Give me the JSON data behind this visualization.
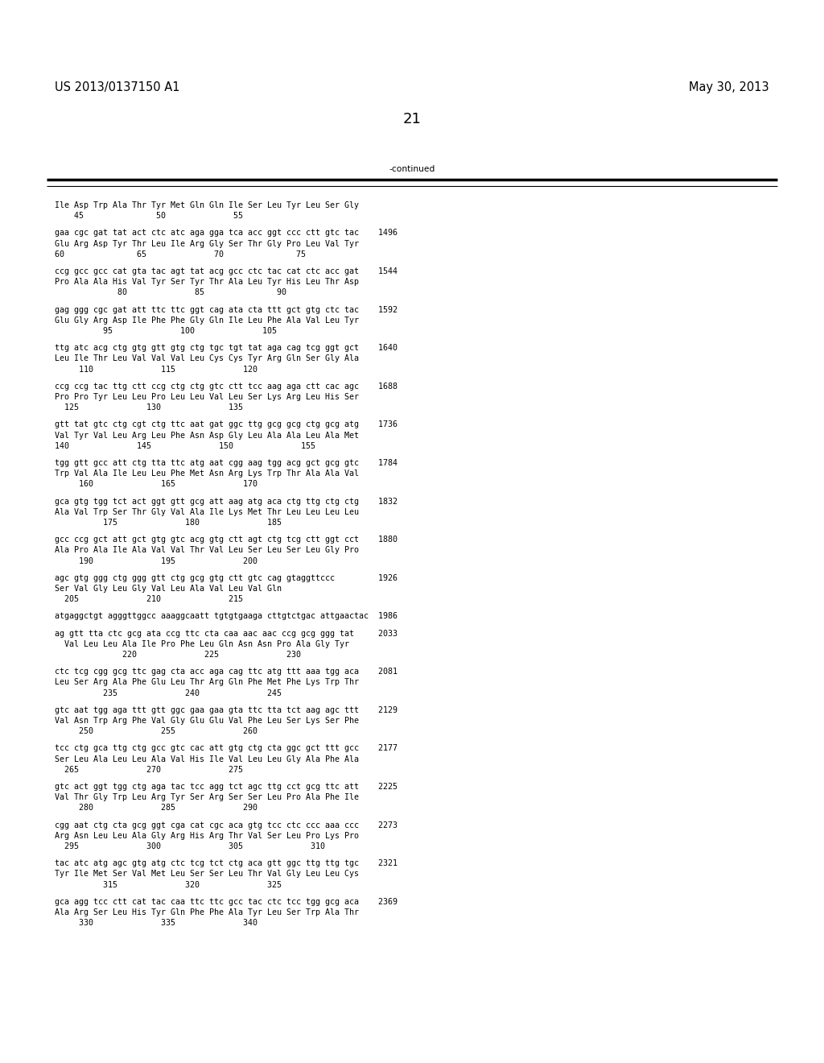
{
  "header_left": "US 2013/0137150 A1",
  "header_right": "May 30, 2013",
  "page_number": "21",
  "continued_label": "-continued",
  "background_color": "#ffffff",
  "text_color": "#000000",
  "font_size": 7.2,
  "header_font_size": 10.5,
  "page_num_font_size": 13,
  "lines": [
    "Ile Asp Trp Ala Thr Tyr Met Gln Gln Ile Ser Leu Tyr Leu Ser Gly",
    "    45               50              55",
    "",
    "gaa cgc gat tat act ctc atc aga gga tca acc ggt ccc ctt gtc tac    1496",
    "Glu Arg Asp Tyr Thr Leu Ile Arg Gly Ser Thr Gly Pro Leu Val Tyr",
    "60               65              70               75",
    "",
    "ccg gcc gcc cat gta tac agt tat acg gcc ctc tac cat ctc acc gat    1544",
    "Pro Ala Ala His Val Tyr Ser Tyr Thr Ala Leu Tyr His Leu Thr Asp",
    "             80              85               90",
    "",
    "gag ggg cgc gat att ttc ttc ggt cag ata cta ttt gct gtg ctc tac    1592",
    "Glu Gly Arg Asp Ile Phe Phe Gly Gln Ile Leu Phe Ala Val Leu Tyr",
    "          95              100              105",
    "",
    "ttg atc acg ctg gtg gtt gtg ctg tgc tgt tat aga cag tcg ggt gct    1640",
    "Leu Ile Thr Leu Val Val Val Leu Cys Cys Tyr Arg Gln Ser Gly Ala",
    "     110              115              120",
    "",
    "ccg ccg tac ttg ctt ccg ctg ctg gtc ctt tcc aag aga ctt cac agc    1688",
    "Pro Pro Tyr Leu Leu Pro Leu Leu Val Leu Ser Lys Arg Leu His Ser",
    "  125              130              135",
    "",
    "gtt tat gtc ctg cgt ctg ttc aat gat ggc ttg gcg gcg ctg gcg atg    1736",
    "Val Tyr Val Leu Arg Leu Phe Asn Asp Gly Leu Ala Ala Leu Ala Met",
    "140              145              150              155",
    "",
    "tgg gtt gcc att ctg tta ttc atg aat cgg aag tgg acg gct gcg gtc    1784",
    "Trp Val Ala Ile Leu Leu Phe Met Asn Arg Lys Trp Thr Ala Ala Val",
    "     160              165              170",
    "",
    "gca gtg tgg tct act ggt gtt gcg att aag atg aca ctg ttg ctg ctg    1832",
    "Ala Val Trp Ser Thr Gly Val Ala Ile Lys Met Thr Leu Leu Leu Leu",
    "          175              180              185",
    "",
    "gcc ccg gct att gct gtg gtc acg gtg ctt agt ctg tcg ctt ggt cct    1880",
    "Ala Pro Ala Ile Ala Val Val Thr Val Leu Ser Leu Ser Leu Gly Pro",
    "     190              195              200",
    "",
    "agc gtg ggg ctg ggg gtt ctg gcg gtg ctt gtc cag gtaggttccc         1926",
    "Ser Val Gly Leu Gly Val Leu Ala Val Leu Val Gln",
    "  205              210              215",
    "",
    "atgaggctgt agggttggcc aaaggcaatt tgtgtgaaga cttgtctgac attgaactac  1986",
    "",
    "ag gtt tta ctc gcg ata ccg ttc cta caa aac aac ccg gcg ggg tat     2033",
    "  Val Leu Leu Ala Ile Pro Phe Leu Gln Asn Asn Pro Ala Gly Tyr",
    "              220              225              230",
    "",
    "ctc tcg cgg gcg ttc gag cta acc aga cag ttc atg ttt aaa tgg aca    2081",
    "Leu Ser Arg Ala Phe Glu Leu Thr Arg Gln Phe Met Phe Lys Trp Thr",
    "          235              240              245",
    "",
    "gtc aat tgg aga ttt gtt ggc gaa gaa gta ttc tta tct aag agc ttt    2129",
    "Val Asn Trp Arg Phe Val Gly Glu Glu Val Phe Leu Ser Lys Ser Phe",
    "     250              255              260",
    "",
    "tcc ctg gca ttg ctg gcc gtc cac att gtg ctg cta ggc gct ttt gcc    2177",
    "Ser Leu Ala Leu Leu Ala Val His Ile Val Leu Leu Gly Ala Phe Ala",
    "  265              270              275",
    "",
    "gtc act ggt tgg ctg aga tac tcc agg tct agc ttg cct gcg ttc att    2225",
    "Val Thr Gly Trp Leu Arg Tyr Ser Arg Ser Ser Leu Pro Ala Phe Ile",
    "     280              285              290",
    "",
    "cgg aat ctg cta gcg ggt cga cat cgc aca gtg tcc ctc ccc aaa ccc    2273",
    "Arg Asn Leu Leu Ala Gly Arg His Arg Thr Val Ser Leu Pro Lys Pro",
    "  295              300              305              310",
    "",
    "tac atc atg agc gtg atg ctc tcg tct ctg aca gtt ggc ttg ttg tgc    2321",
    "Tyr Ile Met Ser Val Met Leu Ser Ser Leu Thr Val Gly Leu Leu Cys",
    "          315              320              325",
    "",
    "gca agg tcc ctt cat tac caa ttc ttc gcc tac ctc tcc tgg gcg aca    2369",
    "Ala Arg Ser Leu His Tyr Gln Phe Phe Ala Tyr Leu Ser Trp Ala Thr",
    "     330              335              340"
  ]
}
